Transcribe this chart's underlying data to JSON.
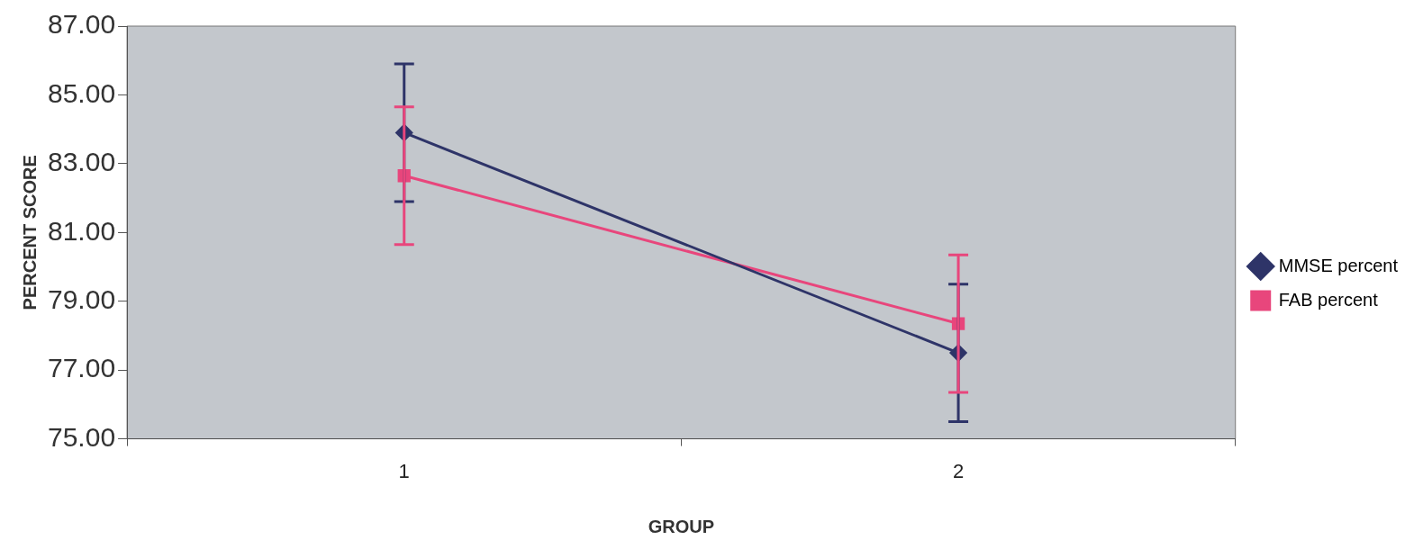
{
  "chart_data": {
    "type": "line",
    "xlabel": "GROUP",
    "ylabel": "PERCENT SCORE",
    "categories": [
      "1",
      "2"
    ],
    "series": [
      {
        "name": "MMSE percent",
        "color": "#2e3468",
        "marker": "diamond",
        "values": [
          83.9,
          77.5
        ],
        "errors": [
          2.0,
          2.0
        ]
      },
      {
        "name": "FAB percent",
        "color": "#e8467c",
        "marker": "square",
        "values": [
          82.65,
          78.35
        ],
        "errors": [
          2.0,
          2.0
        ]
      }
    ],
    "ylim": [
      75,
      87
    ],
    "yticks": [
      {
        "value": 75,
        "label": "75.00"
      },
      {
        "value": 77,
        "label": "77.00"
      },
      {
        "value": 79,
        "label": "79.00"
      },
      {
        "value": 81,
        "label": "81.00"
      },
      {
        "value": 83,
        "label": "83.00"
      },
      {
        "value": 85,
        "label": "85.00"
      },
      {
        "value": 87,
        "label": "87.00"
      }
    ],
    "legend": "right"
  }
}
